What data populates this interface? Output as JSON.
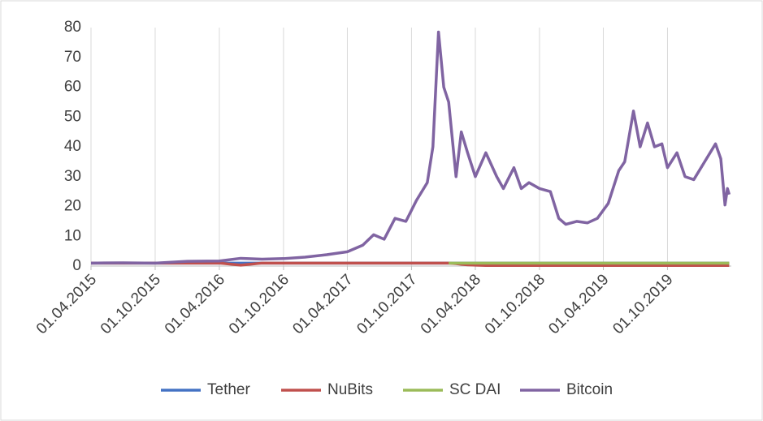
{
  "chart_data": {
    "type": "line",
    "x": [
      "01.04.2015",
      "01.07.2015",
      "01.10.2015",
      "01.01.2016",
      "01.04.2016",
      "01.06.2016",
      "01.08.2016",
      "01.10.2016",
      "01.12.2016",
      "01.02.2017",
      "01.04.2017",
      "15.05.2017",
      "15.06.2017",
      "15.07.2017",
      "15.08.2017",
      "15.09.2017",
      "15.10.2017",
      "15.11.2017",
      "01.12.2017",
      "17.12.2017",
      "01.01.2018",
      "15.01.2018",
      "05.02.2018",
      "20.02.2018",
      "10.03.2018",
      "01.04.2018",
      "01.05.2018",
      "01.06.2018",
      "20.06.2018",
      "20.07.2018",
      "10.08.2018",
      "01.09.2018",
      "01.10.2018",
      "01.11.2018",
      "25.11.2018",
      "15.12.2018",
      "15.01.2019",
      "15.02.2019",
      "15.03.2019",
      "15.04.2019",
      "15.05.2019",
      "01.06.2019",
      "26.06.2019",
      "15.07.2019",
      "05.08.2019",
      "25.08.2019",
      "15.09.2019",
      "01.10.2019",
      "28.10.2019",
      "20.11.2019",
      "15.12.2019",
      "15.01.2020",
      "15.02.2020",
      "01.03.2020",
      "13.03.2020",
      "20.03.2020",
      "25.03.2020"
    ],
    "series": [
      {
        "name": "Tether",
        "color": "#4472c4",
        "values": [
          1,
          1,
          1,
          1,
          1,
          1,
          1,
          1,
          1,
          1,
          1,
          1,
          1,
          1,
          1,
          1,
          1,
          1,
          1,
          1,
          1,
          1,
          1,
          1,
          1,
          1,
          1,
          1,
          1,
          1,
          1,
          1,
          1,
          1,
          1,
          1,
          1,
          1,
          1,
          1,
          1,
          1,
          1,
          1,
          1,
          1,
          1,
          1,
          1,
          1,
          1,
          1,
          1,
          1,
          1,
          1,
          1
        ]
      },
      {
        "name": "NuBits",
        "color": "#c0504d",
        "values": [
          1,
          1,
          1,
          1,
          1,
          0.3,
          1,
          1,
          1,
          1,
          1,
          1,
          1,
          1,
          1,
          1,
          1,
          1,
          1,
          1,
          1,
          1,
          0.8,
          0.6,
          0.4,
          0.3,
          0.2,
          0.2,
          0.2,
          0.2,
          0.2,
          0.2,
          0.2,
          0.2,
          0.2,
          0.2,
          0.2,
          0.2,
          0.2,
          0.2,
          0.2,
          0.2,
          0.2,
          0.2,
          0.2,
          0.2,
          0.2,
          0.2,
          0.2,
          0.2,
          0.2,
          0.2,
          0.2,
          0.2,
          0.2,
          0.2,
          0.2
        ]
      },
      {
        "name": "SC DAI",
        "color": "#9bbb59",
        "values": [
          null,
          null,
          null,
          null,
          null,
          null,
          null,
          null,
          null,
          null,
          null,
          null,
          null,
          null,
          null,
          null,
          null,
          null,
          null,
          null,
          null,
          1,
          1,
          1,
          1,
          1,
          1,
          1,
          1,
          1,
          1,
          1,
          1,
          1,
          1,
          1,
          1,
          1,
          1,
          1,
          1,
          1,
          1,
          1,
          1,
          1,
          1,
          1,
          1,
          1,
          1,
          1,
          1,
          1,
          1,
          1,
          1
        ]
      },
      {
        "name": "Bitcoin",
        "color": "#8064a2",
        "values": [
          1.0,
          1.1,
          1.0,
          1.6,
          1.7,
          2.6,
          2.3,
          2.5,
          3.0,
          3.8,
          4.8,
          7.0,
          10.5,
          9.0,
          16.0,
          15.0,
          22.0,
          28.0,
          40.0,
          78.5,
          60.0,
          55.0,
          30.0,
          45.0,
          38.0,
          30.0,
          38.0,
          30.0,
          26.0,
          33.0,
          26.0,
          28.0,
          26.0,
          25.0,
          16.0,
          14.0,
          15.0,
          14.5,
          16.0,
          21.0,
          32.0,
          35.0,
          52.0,
          40.0,
          48.0,
          40.0,
          41.0,
          33.0,
          38.0,
          30.0,
          29.0,
          35.0,
          41.0,
          36.0,
          20.5,
          26.0,
          24.0
        ]
      }
    ],
    "xlim": [
      "01.04.2015",
      "31.03.2020"
    ],
    "xticks": [
      "01.04.2015",
      "01.10.2015",
      "01.04.2016",
      "01.10.2016",
      "01.04.2017",
      "01.10.2017",
      "01.04.2018",
      "01.10.2018",
      "01.04.2019",
      "01.10.2019"
    ],
    "ylim": [
      0,
      80
    ],
    "yticks": [
      0,
      10,
      20,
      30,
      40,
      50,
      60,
      70,
      80
    ],
    "grid": "x",
    "legend": "bottom"
  }
}
